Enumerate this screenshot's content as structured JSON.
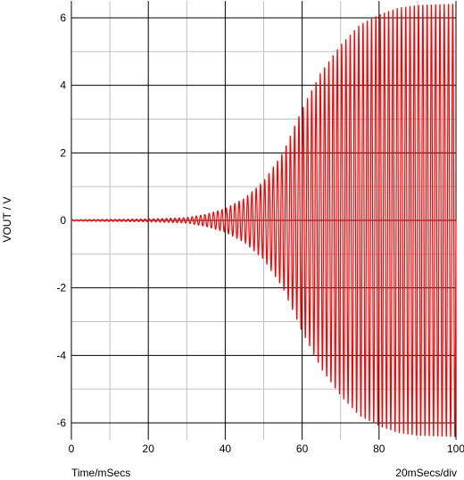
{
  "chart_data": {
    "type": "line",
    "xlabel": "Time/mSecs",
    "ylabel": "VOUT / V",
    "scale_note": "20mSecs/div",
    "xlim": [
      0,
      100
    ],
    "ylim": [
      -6.5,
      6.5
    ],
    "x_ticks": [
      0,
      20,
      40,
      60,
      80,
      100
    ],
    "y_ticks": [
      -6,
      -4,
      -2,
      0,
      2,
      4,
      6
    ],
    "grid": true,
    "series": [
      {
        "color": "#ff0000",
        "frequency_hz": 900,
        "envelope": [
          [
            0,
            0.02
          ],
          [
            20,
            0.04
          ],
          [
            30,
            0.08
          ],
          [
            35,
            0.18
          ],
          [
            40,
            0.35
          ],
          [
            45,
            0.65
          ],
          [
            50,
            1.15
          ],
          [
            55,
            2.0
          ],
          [
            60,
            3.3
          ],
          [
            65,
            4.4
          ],
          [
            70,
            5.2
          ],
          [
            75,
            5.8
          ],
          [
            80,
            6.1
          ],
          [
            85,
            6.3
          ],
          [
            90,
            6.38
          ],
          [
            100,
            6.42
          ]
        ]
      }
    ]
  },
  "colors": {
    "grid_major": "#000000",
    "grid_minor": "#c0c0c0",
    "trace": "#ff0000"
  }
}
